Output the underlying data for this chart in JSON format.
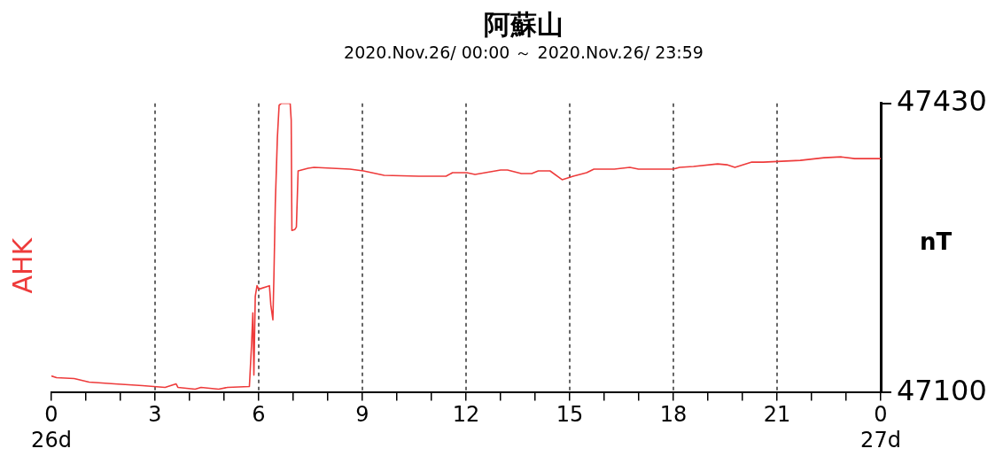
{
  "chart_data": {
    "type": "line",
    "title": "阿蘇山",
    "subtitle": "2020.Nov.26/ 00:00 ～ 2020.Nov.26/ 23:59",
    "ylabel": "nT",
    "xlim": [
      0,
      24
    ],
    "ylim": [
      47100,
      47430
    ],
    "yticks": [
      47100,
      47430
    ],
    "grid": "x",
    "xticks": [
      {
        "value": 0,
        "label": "0\n26d"
      },
      {
        "value": 1,
        "label": null
      },
      {
        "value": 2,
        "label": null
      },
      3,
      {
        "value": 4,
        "label": null
      },
      {
        "value": 5,
        "label": null
      },
      6,
      {
        "value": 7,
        "label": null
      },
      {
        "value": 8,
        "label": null
      },
      9,
      {
        "value": 10,
        "label": null
      },
      {
        "value": 11,
        "label": null
      },
      12,
      {
        "value": 13,
        "label": null
      },
      {
        "value": 14,
        "label": null
      },
      15,
      {
        "value": 16,
        "label": null
      },
      {
        "value": 17,
        "label": null
      },
      18,
      {
        "value": 19,
        "label": null
      },
      {
        "value": 20,
        "label": null
      },
      21,
      {
        "value": 22,
        "label": null
      },
      {
        "value": 23,
        "label": null
      },
      {
        "value": 24,
        "label": "0\n27d"
      }
    ],
    "x": [
      0,
      0.15,
      0.66,
      1.09,
      1.83,
      2.64,
      3.29,
      3.61,
      3.66,
      4.16,
      4.33,
      4.84,
      5.1,
      5.73,
      5.79,
      5.83,
      5.86,
      5.9,
      5.95,
      6.0,
      6.31,
      6.35,
      6.41,
      6.44,
      6.48,
      6.54,
      6.59,
      6.65,
      6.91,
      6.94,
      6.96,
      7.04,
      7.09,
      7.14,
      7.43,
      7.6,
      8.64,
      9.03,
      9.63,
      10.63,
      11.42,
      11.61,
      12.02,
      12.26,
      13.0,
      13.2,
      13.6,
      13.9,
      14.09,
      14.43,
      14.78,
      15.1,
      15.49,
      15.7,
      16.29,
      16.74,
      16.99,
      17.98,
      18.18,
      18.58,
      19.28,
      19.55,
      19.78,
      20.27,
      20.6,
      21.13,
      21.67,
      22.36,
      22.86,
      23.25,
      24
    ],
    "series": [
      {
        "name": "AHK",
        "color": "#ee3b3b",
        "values": [
          47119,
          47117,
          47116,
          47112,
          47110,
          47108,
          47106,
          47110,
          47106,
          47104,
          47106,
          47104,
          47106,
          47107,
          47153,
          47191,
          47120,
          47210,
          47222,
          47218,
          47222,
          47200,
          47183,
          47233,
          47316,
          47391,
          47428,
          47430,
          47430,
          47411,
          47285,
          47286,
          47289,
          47353,
          47356,
          47357,
          47355,
          47353,
          47348,
          47347,
          47347,
          47351,
          47351,
          47349,
          47354,
          47354,
          47350,
          47350,
          47353,
          47353,
          47343,
          47347,
          47351,
          47355,
          47355,
          47357,
          47355,
          47355,
          47357,
          47358,
          47361,
          47360,
          47357,
          47363,
          47363,
          47364,
          47365,
          47368,
          47369,
          47367,
          47367
        ]
      }
    ]
  }
}
